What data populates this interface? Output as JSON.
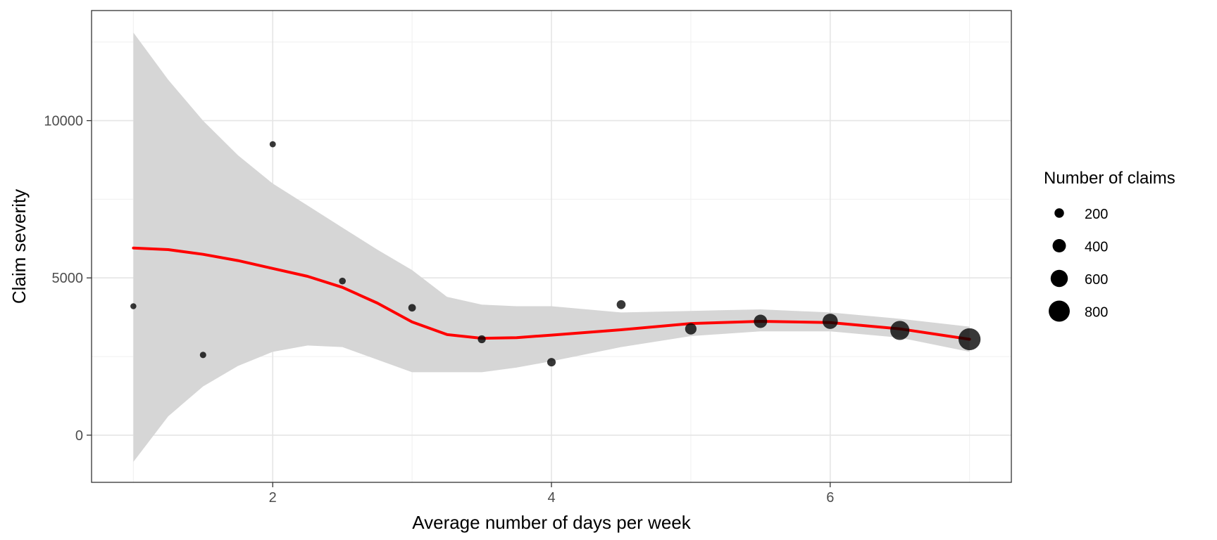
{
  "chart_data": {
    "type": "scatter",
    "title": "",
    "xlabel": "Average number of days per week",
    "ylabel": "Claim severity",
    "xlim": [
      0.7,
      7.3
    ],
    "ylim": [
      -1500,
      13500
    ],
    "x_ticks": [
      2,
      4,
      6
    ],
    "x_minor": [
      1,
      3,
      5,
      7
    ],
    "y_ticks": [
      0,
      5000,
      10000
    ],
    "y_minor": [
      -2500,
      2500,
      7500,
      12500
    ],
    "grid": true,
    "points": [
      {
        "x": 1.0,
        "y": 4100,
        "n": 20
      },
      {
        "x": 1.5,
        "y": 2550,
        "n": 40
      },
      {
        "x": 2.0,
        "y": 9250,
        "n": 30
      },
      {
        "x": 2.5,
        "y": 4900,
        "n": 60
      },
      {
        "x": 3.0,
        "y": 4050,
        "n": 100
      },
      {
        "x": 3.5,
        "y": 3050,
        "n": 120
      },
      {
        "x": 4.0,
        "y": 2320,
        "n": 150
      },
      {
        "x": 4.5,
        "y": 4150,
        "n": 170
      },
      {
        "x": 5.0,
        "y": 3380,
        "n": 300
      },
      {
        "x": 5.5,
        "y": 3620,
        "n": 400
      },
      {
        "x": 6.0,
        "y": 3620,
        "n": 500
      },
      {
        "x": 6.5,
        "y": 3330,
        "n": 700
      },
      {
        "x": 7.0,
        "y": 3050,
        "n": 850
      }
    ],
    "smooth_line": {
      "color": "#ff0000",
      "x": [
        1.0,
        1.25,
        1.5,
        1.75,
        2.0,
        2.25,
        2.5,
        2.75,
        3.0,
        3.25,
        3.5,
        3.75,
        4.0,
        4.5,
        5.0,
        5.5,
        6.0,
        6.5,
        7.0
      ],
      "y": [
        5950,
        5900,
        5750,
        5550,
        5300,
        5050,
        4700,
        4200,
        3600,
        3200,
        3080,
        3100,
        3180,
        3350,
        3550,
        3620,
        3580,
        3380,
        3050
      ]
    },
    "confidence_band": {
      "color": "#d6d6d6",
      "x": [
        1.0,
        1.25,
        1.5,
        1.75,
        2.0,
        2.25,
        2.5,
        2.75,
        3.0,
        3.25,
        3.5,
        3.75,
        4.0,
        4.5,
        5.0,
        5.5,
        6.0,
        6.5,
        7.0
      ],
      "upper": [
        12800,
        11300,
        10000,
        8900,
        8000,
        7300,
        6600,
        5900,
        5250,
        4400,
        4150,
        4100,
        4100,
        3900,
        3950,
        4000,
        3900,
        3700,
        3450
      ],
      "lower": [
        -850,
        600,
        1550,
        2200,
        2650,
        2850,
        2800,
        2400,
        2000,
        2000,
        2000,
        2150,
        2350,
        2800,
        3150,
        3300,
        3300,
        3100,
        2650
      ]
    },
    "legend": {
      "title": "Number of claims",
      "position": "right",
      "entries": [
        {
          "label": "200",
          "n": 200
        },
        {
          "label": "400",
          "n": 400
        },
        {
          "label": "600",
          "n": 600
        },
        {
          "label": "800",
          "n": 800
        }
      ]
    }
  }
}
